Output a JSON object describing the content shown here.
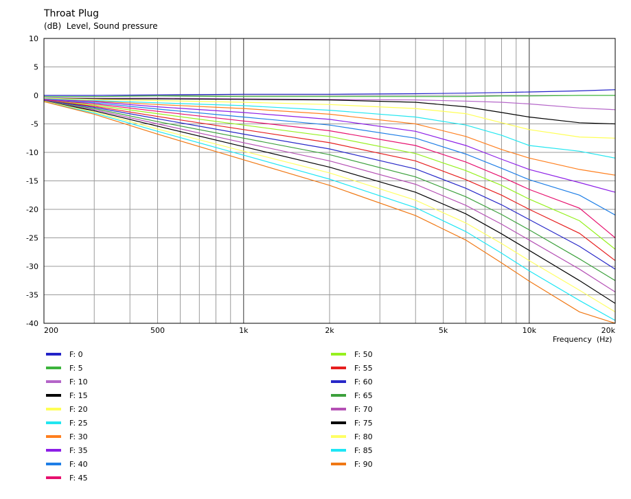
{
  "chart_data": {
    "type": "line",
    "title": "Throat Plug",
    "subtitle": "(dB)  Level, Sound pressure",
    "xlabel": "Frequency  (Hz)",
    "x_scale": "log",
    "xlim": [
      200,
      20000
    ],
    "ylim": [
      -40,
      10
    ],
    "grid": true,
    "legend_position": "bottom",
    "x_tick_labels": [
      {
        "value": 200,
        "label": "200"
      },
      {
        "value": 500,
        "label": "500"
      },
      {
        "value": 1000,
        "label": "1k"
      },
      {
        "value": 2000,
        "label": "2k"
      },
      {
        "value": 5000,
        "label": "5k"
      },
      {
        "value": 10000,
        "label": "10k"
      },
      {
        "value": 20000,
        "label": "20k"
      }
    ],
    "y_ticks": [
      10,
      5,
      0,
      -5,
      -10,
      -15,
      -20,
      -25,
      -30,
      -35,
      -40
    ],
    "x": [
      200,
      300,
      500,
      1000,
      2000,
      4000,
      6000,
      8000,
      10000,
      15000,
      20000
    ],
    "series": [
      {
        "name": "F: 0",
        "color": "#2323c8",
        "values": [
          0.0,
          0.0,
          0.1,
          0.2,
          0.2,
          0.3,
          0.4,
          0.5,
          0.6,
          0.8,
          1.0
        ]
      },
      {
        "name": "F: 5",
        "color": "#3cb43c",
        "values": [
          -0.2,
          -0.2,
          -0.1,
          -0.2,
          -0.2,
          -0.2,
          -0.2,
          -0.1,
          -0.1,
          0.0,
          0.0
        ]
      },
      {
        "name": "F: 10",
        "color": "#b464c8",
        "values": [
          -0.4,
          -0.5,
          -0.5,
          -0.6,
          -0.7,
          -0.8,
          -1.0,
          -1.2,
          -1.5,
          -2.2,
          -2.5
        ]
      },
      {
        "name": "F: 15",
        "color": "#000000",
        "values": [
          -0.5,
          -0.6,
          -0.6,
          -0.7,
          -0.8,
          -1.2,
          -2.0,
          -3.0,
          -3.8,
          -4.8,
          -5.0
        ]
      },
      {
        "name": "F: 20",
        "color": "#ffff55",
        "values": [
          -0.5,
          -0.7,
          -0.9,
          -1.2,
          -1.6,
          -2.3,
          -3.2,
          -4.8,
          -6.0,
          -7.3,
          -7.5
        ]
      },
      {
        "name": "F: 25",
        "color": "#22e6f0",
        "values": [
          -0.6,
          -0.9,
          -1.3,
          -1.8,
          -2.6,
          -3.8,
          -5.2,
          -7.0,
          -8.8,
          -9.8,
          -11.0
        ]
      },
      {
        "name": "F: 30",
        "color": "#ff7f1e",
        "values": [
          -0.7,
          -1.0,
          -1.6,
          -2.3,
          -3.3,
          -5.0,
          -7.2,
          -9.5,
          -11.0,
          -13.0,
          -14.0
        ]
      },
      {
        "name": "F: 35",
        "color": "#8c1ee6",
        "values": [
          -0.7,
          -1.1,
          -2.0,
          -3.0,
          -4.2,
          -6.3,
          -8.8,
          -11.2,
          -13.0,
          -15.3,
          -17.0
        ]
      },
      {
        "name": "F: 40",
        "color": "#1e7ee6",
        "values": [
          -0.8,
          -1.3,
          -2.4,
          -3.8,
          -5.2,
          -7.5,
          -10.3,
          -12.8,
          -14.8,
          -17.5,
          -21.0
        ]
      },
      {
        "name": "F: 45",
        "color": "#e6106e",
        "values": [
          -0.8,
          -1.5,
          -2.8,
          -4.5,
          -6.2,
          -8.8,
          -11.7,
          -14.3,
          -16.5,
          -19.8,
          -25.0
        ]
      },
      {
        "name": "F: 50",
        "color": "#96f01e",
        "values": [
          -0.9,
          -1.7,
          -3.2,
          -5.2,
          -7.2,
          -10.2,
          -13.2,
          -15.8,
          -18.2,
          -22.0,
          -27.0
        ]
      },
      {
        "name": "F: 55",
        "color": "#e61e1e",
        "values": [
          -0.9,
          -1.9,
          -3.7,
          -6.0,
          -8.3,
          -11.5,
          -14.8,
          -17.5,
          -20.0,
          -24.2,
          -29.0
        ]
      },
      {
        "name": "F: 60",
        "color": "#2828c8",
        "values": [
          -0.9,
          -2.1,
          -4.1,
          -6.8,
          -9.4,
          -12.9,
          -16.3,
          -19.2,
          -21.8,
          -26.5,
          -30.5
        ]
      },
      {
        "name": "F: 65",
        "color": "#3ca03c",
        "values": [
          -1.0,
          -2.3,
          -4.6,
          -7.5,
          -10.4,
          -14.3,
          -17.8,
          -20.9,
          -23.6,
          -28.7,
          -32.5
        ]
      },
      {
        "name": "F: 70",
        "color": "#b450b4",
        "values": [
          -1.0,
          -2.5,
          -5.0,
          -8.3,
          -11.5,
          -15.6,
          -19.3,
          -22.6,
          -25.4,
          -30.5,
          -34.5
        ]
      },
      {
        "name": "F: 75",
        "color": "#000000",
        "values": [
          -1.0,
          -2.7,
          -5.4,
          -9.0,
          -12.6,
          -17.0,
          -20.8,
          -24.3,
          -27.2,
          -32.5,
          -36.5
        ]
      },
      {
        "name": "F: 80",
        "color": "#ffff64",
        "values": [
          -1.0,
          -2.9,
          -5.9,
          -9.8,
          -13.6,
          -18.4,
          -22.4,
          -26.0,
          -29.0,
          -34.2,
          -38.0
        ]
      },
      {
        "name": "F: 85",
        "color": "#1ee6f5",
        "values": [
          -1.1,
          -3.1,
          -6.3,
          -10.5,
          -14.7,
          -19.7,
          -23.9,
          -27.7,
          -30.8,
          -36.0,
          -39.5
        ]
      },
      {
        "name": "F: 90",
        "color": "#f07814",
        "values": [
          -1.1,
          -3.3,
          -6.8,
          -11.3,
          -15.8,
          -21.1,
          -25.4,
          -29.4,
          -32.6,
          -38.0,
          -41.0
        ]
      }
    ]
  }
}
